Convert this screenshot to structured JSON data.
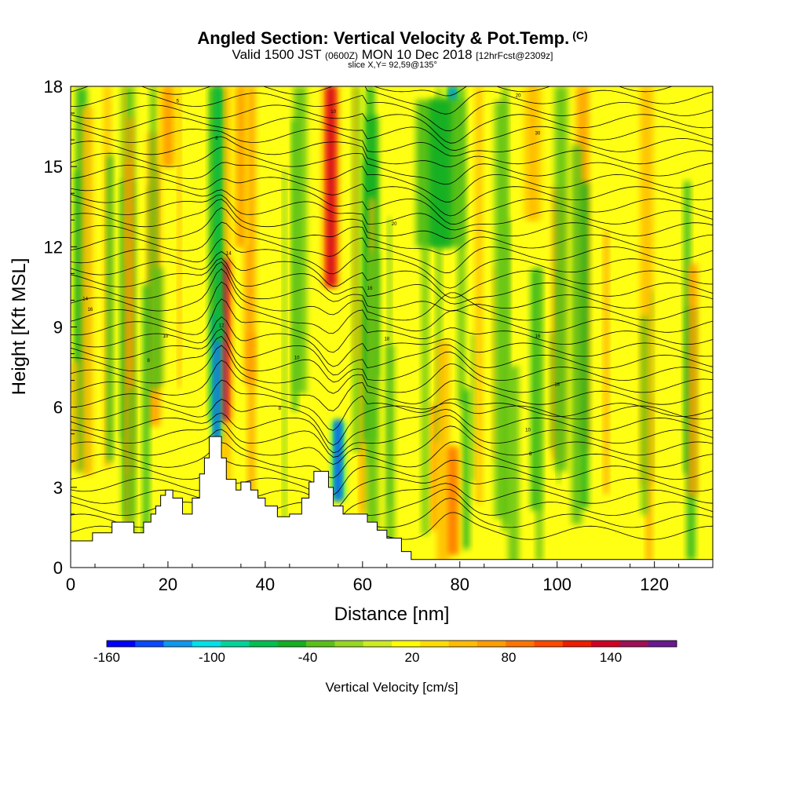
{
  "header": {
    "title": "Angled Section: Vertical Velocity & Pot.Temp.",
    "copyright": "(C)",
    "valid_prefix": "Valid 1500 JST",
    "valid_utc": "(0600Z)",
    "valid_date": "MON 10 Dec 2018",
    "forecast": "[12hrFcst@2309z]",
    "slice": "slice X,Y= 92,59@135°"
  },
  "chart_data": {
    "type": "heatmap",
    "xlabel": "Distance [nm]",
    "ylabel": "Height [Kft MSL]",
    "xlim": [
      0,
      132
    ],
    "ylim": [
      0,
      18
    ],
    "x_ticks": [
      0,
      20,
      40,
      60,
      80,
      100,
      120
    ],
    "y_ticks": [
      0,
      3,
      6,
      9,
      12,
      15,
      18
    ],
    "background_value": 20,
    "updrafts_downdrafts": [
      {
        "x": 31.5,
        "y_bottom": 5.5,
        "y_top": 11.5,
        "width": 1.5,
        "value": 150
      },
      {
        "x": 30,
        "y_bottom": 4.7,
        "y_top": 9.5,
        "width": 1.0,
        "value": -150
      },
      {
        "x": 53.5,
        "y_bottom": 10.5,
        "y_top": 18,
        "width": 1.6,
        "value": 130
      },
      {
        "x": 55,
        "y_bottom": 2.5,
        "y_top": 5.5,
        "width": 1.3,
        "value": -145
      },
      {
        "x": 78.5,
        "y_bottom": 14,
        "y_top": 18,
        "width": 1.2,
        "value": -120
      },
      {
        "x": 78.5,
        "y_bottom": 0.5,
        "y_top": 4.5,
        "width": 1.6,
        "value": 80
      },
      {
        "x": 30.3,
        "y_bottom": 8.5,
        "y_top": 18,
        "width": 1.0,
        "value": -80
      },
      {
        "x": 76,
        "y_bottom": 12,
        "y_top": 17.5,
        "width": 5,
        "value": -60
      },
      {
        "x": 20,
        "y_bottom": 15,
        "y_top": 18,
        "width": 2,
        "value": 60
      },
      {
        "x": 35,
        "y_bottom": 12,
        "y_top": 18,
        "width": 1.5,
        "value": 60
      },
      {
        "x": 95,
        "y_bottom": 13,
        "y_top": 18,
        "width": 2,
        "value": 50
      }
    ],
    "terrain_profile_kft": {
      "x": [
        0,
        4.5,
        8.5,
        13,
        15,
        16.5,
        17.5,
        18.5,
        19.5,
        21,
        23,
        25,
        26.5,
        27.5,
        28.5,
        31,
        32,
        34,
        35,
        37,
        38.5,
        40,
        41,
        42.5,
        45,
        47.5,
        49,
        50,
        51,
        53,
        54,
        56,
        60,
        61,
        63,
        65,
        68,
        70,
        72,
        132
      ],
      "y": [
        1.0,
        1.3,
        1.7,
        1.3,
        1.7,
        2.0,
        2.3,
        2.7,
        2.9,
        2.6,
        2.0,
        2.6,
        3.5,
        4.1,
        4.9,
        4.1,
        3.3,
        2.9,
        3.2,
        2.9,
        2.6,
        2.3,
        2.3,
        1.9,
        2.0,
        2.6,
        3.2,
        3.6,
        3.6,
        3.0,
        2.3,
        2.0,
        2.0,
        1.7,
        1.4,
        1.1,
        0.6,
        0.3,
        0.3,
        0.3
      ]
    },
    "potential_temperature_labels": [
      {
        "text": "5",
        "x": 22,
        "y": 17.4
      },
      {
        "text": "8",
        "x": 30,
        "y": 16.0
      },
      {
        "text": "10",
        "x": 54,
        "y": 17.0
      },
      {
        "text": "14",
        "x": 32.5,
        "y": 11.7
      },
      {
        "text": "12",
        "x": 31,
        "y": 9.0
      },
      {
        "text": "10",
        "x": 19.5,
        "y": 8.6
      },
      {
        "text": "8",
        "x": 16,
        "y": 7.7
      },
      {
        "text": "10",
        "x": 46.5,
        "y": 7.8
      },
      {
        "text": "8",
        "x": 43,
        "y": 5.9
      },
      {
        "text": "14",
        "x": 3,
        "y": 10.0
      },
      {
        "text": "16",
        "x": 4,
        "y": 9.6
      },
      {
        "text": "20",
        "x": 66.5,
        "y": 12.8
      },
      {
        "text": "16",
        "x": 61.5,
        "y": 10.4
      },
      {
        "text": "18",
        "x": 65,
        "y": 8.5
      },
      {
        "text": "20",
        "x": 92,
        "y": 17.6
      },
      {
        "text": "30",
        "x": 96,
        "y": 16.2
      },
      {
        "text": "16",
        "x": 96,
        "y": 8.6
      },
      {
        "text": "18",
        "x": 100,
        "y": 6.8
      },
      {
        "text": "10",
        "x": 94,
        "y": 5.1
      },
      {
        "text": "8",
        "x": 94.5,
        "y": 4.2
      }
    ]
  },
  "colorbar": {
    "title": "Vertical Velocity [cm/s]",
    "labels": [
      "-160",
      "-100",
      "-40",
      "20",
      "80",
      "140"
    ],
    "colors": [
      "#0000ff",
      "#0a49ff",
      "#0f97f0",
      "#00e0e8",
      "#00d49a",
      "#00c050",
      "#14b020",
      "#5ac018",
      "#96d81e",
      "#ccec20",
      "#ffff00",
      "#ffdc00",
      "#ffbc00",
      "#ff9c00",
      "#ff7400",
      "#ff4800",
      "#ee1c00",
      "#d00024",
      "#a01058",
      "#6a1890"
    ]
  },
  "styles": {
    "plot_background": "#ffff14",
    "contour_color": "#000000",
    "terrain_fill": "#ffffff"
  }
}
